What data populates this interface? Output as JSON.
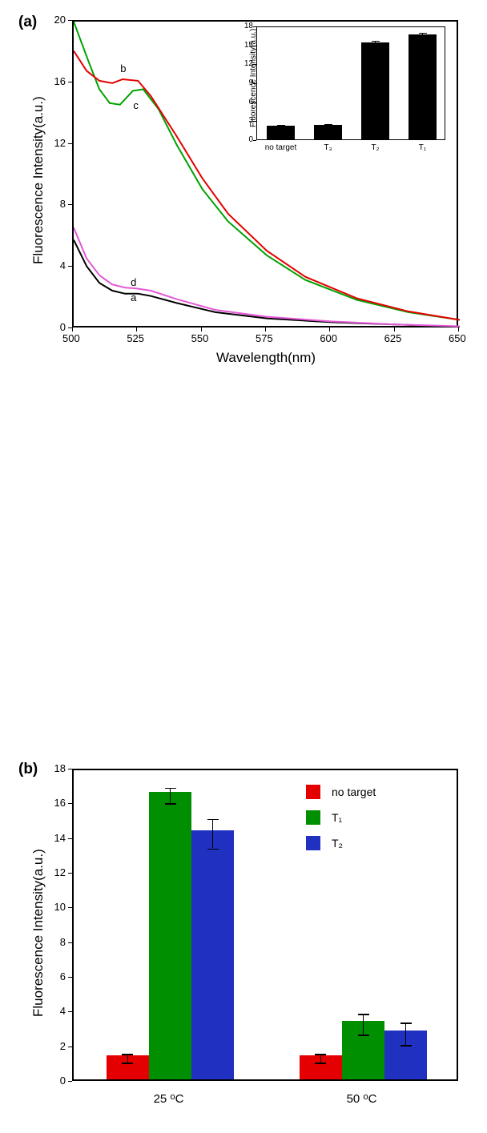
{
  "panelA": {
    "label": "(a)",
    "plot": {
      "xlim": [
        500,
        650
      ],
      "ylim": [
        0,
        20
      ],
      "xticks": [
        500,
        525,
        550,
        575,
        600,
        625,
        650
      ],
      "yticks": [
        0,
        4,
        8,
        12,
        16,
        20
      ],
      "xlabel": "Wavelength(nm)",
      "ylabel": "Fluorescence Intensity(a.u.)",
      "curves": {
        "a": {
          "color": "#000000",
          "label": "a",
          "points": [
            [
              500,
              5.8
            ],
            [
              505,
              4.1
            ],
            [
              510,
              3.0
            ],
            [
              515,
              2.5
            ],
            [
              520,
              2.3
            ],
            [
              525,
              2.3
            ],
            [
              530,
              2.15
            ],
            [
              540,
              1.7
            ],
            [
              555,
              1.1
            ],
            [
              575,
              0.7
            ],
            [
              600,
              0.45
            ],
            [
              625,
              0.3
            ],
            [
              650,
              0.15
            ]
          ]
        },
        "d": {
          "color": "#e359d7",
          "label": "d",
          "points": [
            [
              500,
              6.6
            ],
            [
              505,
              4.6
            ],
            [
              510,
              3.5
            ],
            [
              515,
              2.9
            ],
            [
              520,
              2.7
            ],
            [
              524,
              2.65
            ],
            [
              530,
              2.5
            ],
            [
              540,
              1.95
            ],
            [
              555,
              1.25
            ],
            [
              575,
              0.8
            ],
            [
              600,
              0.5
            ],
            [
              625,
              0.3
            ],
            [
              650,
              0.18
            ]
          ]
        },
        "c": {
          "color": "#00a200",
          "label": "c",
          "points": [
            [
              500,
              20
            ],
            [
              506,
              17.3
            ],
            [
              510,
              15.6
            ],
            [
              514,
              14.7
            ],
            [
              518,
              14.6
            ],
            [
              523,
              15.5
            ],
            [
              527,
              15.6
            ],
            [
              533,
              14.3
            ],
            [
              540,
              12.0
            ],
            [
              550,
              9.1
            ],
            [
              560,
              7.0
            ],
            [
              575,
              4.8
            ],
            [
              590,
              3.2
            ],
            [
              610,
              1.9
            ],
            [
              630,
              1.1
            ],
            [
              650,
              0.6
            ]
          ]
        },
        "b": {
          "color": "#e40000",
          "label": "b",
          "points": [
            [
              500,
              18.1
            ],
            [
              505,
              16.8
            ],
            [
              510,
              16.15
            ],
            [
              515,
              16.0
            ],
            [
              519,
              16.25
            ],
            [
              525,
              16.15
            ],
            [
              530,
              15.15
            ],
            [
              540,
              12.55
            ],
            [
              550,
              9.8
            ],
            [
              560,
              7.5
            ],
            [
              575,
              5.1
            ],
            [
              590,
              3.4
            ],
            [
              610,
              2.0
            ],
            [
              630,
              1.15
            ],
            [
              650,
              0.6
            ]
          ]
        }
      },
      "curve_label_pos": {
        "a": [
          524,
          1.95
        ],
        "d": [
          524,
          2.9
        ],
        "c": [
          525,
          14.45
        ],
        "b": [
          520,
          16.8
        ]
      }
    },
    "inset": {
      "ylim": [
        0,
        18
      ],
      "yticks": [
        0,
        3,
        6,
        9,
        12,
        15,
        18
      ],
      "ylabel": "Fluorescence Intensity(a.u.)",
      "bars": [
        {
          "label": "no target",
          "value": 2.1,
          "err": 0.4
        },
        {
          "label": "T₃",
          "value": 2.3,
          "err": 0.4
        },
        {
          "label": "T₂",
          "value": 15.3,
          "err": 0.5
        },
        {
          "label": "T₁",
          "value": 16.6,
          "err": 0.5
        }
      ],
      "bar_color": "#000000",
      "bar_width": 0.6
    }
  },
  "panelB": {
    "label": "(b)",
    "ylim": [
      0,
      18
    ],
    "yticks": [
      0,
      2,
      4,
      6,
      8,
      10,
      12,
      14,
      16,
      18
    ],
    "ylabel": "Fluorescence Intensity(a.u.)",
    "groups": [
      "25 ℃",
      "50 ℃"
    ],
    "series": [
      {
        "name": "no target",
        "color": "#e40000"
      },
      {
        "name": "T₁",
        "color": "#008f00"
      },
      {
        "name": "T₂",
        "color": "#2030c0"
      }
    ],
    "data": {
      "25 ℃": {
        "no target": {
          "v": 1.4,
          "e": 0.25
        },
        "T₁": {
          "v": 16.55,
          "e": 0.45
        },
        "T₂": {
          "v": 14.35,
          "e": 0.85
        }
      },
      "50 ℃": {
        "no target": {
          "v": 1.4,
          "e": 0.25
        },
        "T₁": {
          "v": 3.35,
          "e": 0.6
        },
        "T₂": {
          "v": 2.8,
          "e": 0.65
        }
      }
    },
    "bar_width": 0.22
  },
  "panel_label_fontsize": 19,
  "axis_fontsize": 17,
  "tick_fontsize": 13
}
